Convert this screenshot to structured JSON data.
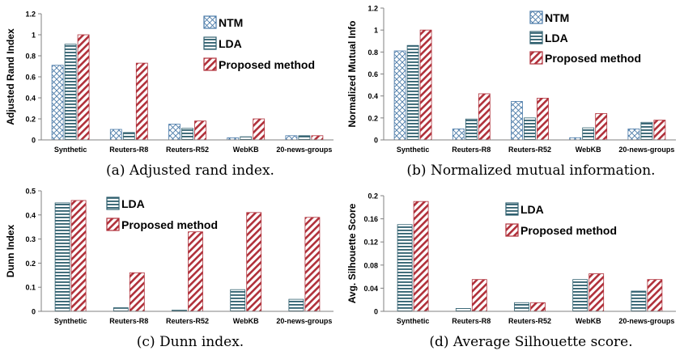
{
  "colors": {
    "ntm": "#4a7aa8",
    "lda": "#2e5f6e",
    "proposed": "#b0303a",
    "axis": "#808080"
  },
  "chart_data": [
    {
      "type": "bar",
      "caption": "(a) Adjusted rand index.",
      "ylabel": "Adjusted Rand Index",
      "categories": [
        "Synthetic",
        "Reuters-R8",
        "Reuters-R52",
        "WebKB",
        "20-news-groups"
      ],
      "ylim": [
        0,
        1.2
      ],
      "yticks": [
        "0",
        "0.2",
        "0.4",
        "0.6",
        "0.8",
        "1",
        "1.2"
      ],
      "legend_position": "top-right",
      "series": [
        {
          "name": "NTM",
          "pattern": "ntm",
          "values": [
            0.71,
            0.1,
            0.15,
            0.02,
            0.04
          ]
        },
        {
          "name": "LDA",
          "pattern": "lda",
          "values": [
            0.91,
            0.07,
            0.11,
            0.03,
            0.04
          ]
        },
        {
          "name": "Proposed method",
          "pattern": "proposed",
          "values": [
            1.0,
            0.73,
            0.18,
            0.2,
            0.04
          ]
        }
      ]
    },
    {
      "type": "bar",
      "caption": "(b) Normalized mutual information.",
      "ylabel": "Normalized Mutual Info",
      "categories": [
        "Synthetic",
        "Reuters-R8",
        "Reuters-R52",
        "WebKB",
        "20-news-groups"
      ],
      "ylim": [
        0,
        1.2
      ],
      "yticks": [
        "0",
        "0.2",
        "0.4",
        "0.6",
        "0.8",
        "1",
        "1.2"
      ],
      "legend_position": "top-right",
      "series": [
        {
          "name": "NTM",
          "pattern": "ntm",
          "values": [
            0.81,
            0.1,
            0.35,
            0.02,
            0.1
          ]
        },
        {
          "name": "LDA",
          "pattern": "lda",
          "values": [
            0.86,
            0.19,
            0.2,
            0.11,
            0.16
          ]
        },
        {
          "name": "Proposed method",
          "pattern": "proposed",
          "values": [
            1.0,
            0.42,
            0.38,
            0.24,
            0.18
          ]
        }
      ]
    },
    {
      "type": "bar",
      "caption": "(c) Dunn index.",
      "ylabel": "Dunn Index",
      "categories": [
        "Synthetic",
        "Reuters-R8",
        "Reuters-R52",
        "WebKB",
        "20-news-groups"
      ],
      "ylim": [
        0,
        0.5
      ],
      "yticks": [
        "0",
        "0.1",
        "0.2",
        "0.3",
        "0.4",
        "0.5"
      ],
      "legend_position": "top-left",
      "series": [
        {
          "name": "LDA",
          "pattern": "lda",
          "values": [
            0.45,
            0.015,
            0.005,
            0.09,
            0.05
          ]
        },
        {
          "name": "Proposed method",
          "pattern": "proposed",
          "values": [
            0.46,
            0.16,
            0.33,
            0.41,
            0.39
          ]
        }
      ]
    },
    {
      "type": "bar",
      "caption": "(d) Average Silhouette score.",
      "ylabel": "Avg. Silhouette Score",
      "categories": [
        "Synthetic",
        "Reuters-R8",
        "Reuters-R52",
        "WebKB",
        "20-news-groups"
      ],
      "ylim": [
        0,
        0.2
      ],
      "yticks": [
        "0",
        "0.04",
        "0.08",
        "0.12",
        "0.16",
        "0.2"
      ],
      "legend_position": "top-center",
      "series": [
        {
          "name": "LDA",
          "pattern": "lda",
          "values": [
            0.15,
            0.005,
            0.015,
            0.055,
            0.035
          ]
        },
        {
          "name": "Proposed method",
          "pattern": "proposed",
          "values": [
            0.19,
            0.055,
            0.015,
            0.065,
            0.055
          ]
        }
      ]
    }
  ]
}
